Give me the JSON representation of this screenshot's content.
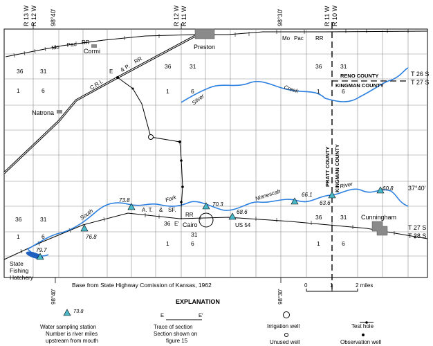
{
  "top_labels": {
    "r13w": "R 13 W",
    "r12w_a": "R 12 W",
    "lon1": "98°40'",
    "r12w_b": "R 12 W",
    "r11w_a": "R 11 W",
    "lon2": "98°30'",
    "r11w_b": "R 11 W",
    "r10w": "R 10 W"
  },
  "towns": {
    "cormi": "Cormi",
    "preston": "Preston",
    "natrona": "Natrona",
    "cairo": "Cairo",
    "cunningham": "Cunningham"
  },
  "railroads": {
    "mo": "Mo",
    "pac": "Pac",
    "rr1": "RR",
    "mo2": "Mo",
    "pac2": "Pac",
    "rr2": "RR",
    "cri": "C.R.I.",
    "e": "E",
    "amp": "& P.",
    "rr3": "RR",
    "at": "A. T.",
    "amp2": "&",
    "sf": "SF.",
    "rr4": "RR"
  },
  "streams": {
    "silver": "Silver",
    "creek": "Creek",
    "fork": "Fork",
    "south": "South",
    "ninnescah": "Ninnescah",
    "river": "River"
  },
  "counties": {
    "reno": "RENO COUNTY",
    "kingman": "KINGMAN COUNTY",
    "pratt": "PRATT COUNTY",
    "kingman_v": "KINGMAN COUNTY"
  },
  "townships": {
    "t26s": "T 26 S",
    "t27s": "T 27 S",
    "t27s_b": "T 27 S",
    "t28s": "T 28 S"
  },
  "lat": "37°40'",
  "highway": "US 54",
  "section_end": "E'",
  "section_numbers": {
    "s36a": "36",
    "s31a": "31",
    "s1a": "1",
    "s6a": "6",
    "s36b": "36",
    "s31b": "31",
    "s1b": "1",
    "s6b": "6",
    "s36c": "36",
    "s31c": "31",
    "s1c": "1",
    "s6c": "6",
    "s36d": "36",
    "s31d": "31",
    "s1d": "1",
    "s6d": "6",
    "s36e": "36",
    "s31e": "31",
    "s1e": "1",
    "s6e": "6",
    "s36f": "36",
    "s31f": "31",
    "s1f": "1",
    "s6f": "6"
  },
  "stations": {
    "s1": "79.7",
    "s2": "76.8",
    "s3": "73.8",
    "s4": "70.3",
    "s5": "68.6",
    "s6": "66.1",
    "s7": "63.6",
    "s8": "60.8"
  },
  "lake": {
    "line1": "State",
    "line2": "Fishing",
    "line3": "Hatchery"
  },
  "base_note": "Base from State Highway Comission of Kansas, 1962",
  "bottom_lon1": "98°40'",
  "bottom_lon2": "98°30'",
  "scale": {
    "zero": "0",
    "one": "1",
    "two": "2 miles"
  },
  "explanation": {
    "title": "EXPLANATION",
    "sample_value": "73.8",
    "water_station": "Water sampling station",
    "station_note1": "Number is river miles",
    "station_note2": "upstream from mouth",
    "trace_e": "E",
    "trace_e2": "E'",
    "trace": "Trace of section",
    "trace_note1": "Section shown on",
    "trace_note2": "figure 15",
    "irrigation": "Irrigation well",
    "unused": "Unused well",
    "test_hole": "Test hole",
    "observation": "Observation well"
  },
  "colors": {
    "water": "#2a7fe0",
    "station": "#49b8c8",
    "town": "#8a8a8a",
    "grid": "#8c8c8c"
  }
}
